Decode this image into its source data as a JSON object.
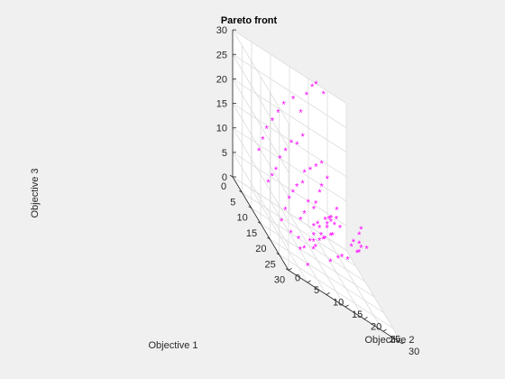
{
  "chart_data": {
    "type": "scatter",
    "title": "Pareto front",
    "xlabel": "Objective 1",
    "ylabel": "Objective 2",
    "zlabel": "Objective 3",
    "xlim": [
      0,
      30
    ],
    "ylim": [
      0,
      30
    ],
    "zlim": [
      0,
      30
    ],
    "xticks": [
      "0",
      "5",
      "10",
      "15",
      "20",
      "25",
      "30"
    ],
    "yticks": [
      "0",
      "5",
      "10",
      "15",
      "20",
      "25",
      "30"
    ],
    "zticks": [
      "0",
      "5",
      "10",
      "15",
      "20",
      "25",
      "30"
    ],
    "grid": true,
    "marker": "*",
    "marker_color": "#ff00ff",
    "series": [
      {
        "points": [
          [
            26,
            7,
            2
          ],
          [
            24,
            14,
            5
          ],
          [
            22,
            17,
            6
          ],
          [
            20,
            19,
            6
          ],
          [
            17,
            22,
            5
          ],
          [
            21,
            18,
            12
          ],
          [
            19,
            22,
            9
          ],
          [
            18,
            24,
            8
          ],
          [
            17,
            25,
            8
          ],
          [
            16,
            24,
            9
          ],
          [
            15,
            26,
            9
          ],
          [
            14,
            27,
            8
          ],
          [
            13,
            27,
            10
          ],
          [
            15,
            28,
            9
          ],
          [
            12,
            28,
            11
          ],
          [
            23,
            10,
            5
          ],
          [
            21,
            13,
            8
          ],
          [
            19,
            15,
            7
          ],
          [
            18,
            17,
            8
          ],
          [
            17,
            18,
            8
          ],
          [
            16,
            19,
            10
          ],
          [
            15,
            20,
            11
          ],
          [
            19,
            12,
            5
          ],
          [
            16,
            14,
            3
          ],
          [
            14,
            16,
            4
          ],
          [
            12,
            18,
            4
          ],
          [
            11,
            17,
            6
          ],
          [
            10,
            20,
            6
          ],
          [
            9,
            20,
            7
          ],
          [
            8,
            22,
            7
          ],
          [
            20,
            8,
            2
          ],
          [
            18,
            10,
            2
          ],
          [
            15,
            13,
            3
          ],
          [
            13,
            15,
            4
          ],
          [
            11,
            16,
            5
          ],
          [
            10,
            18,
            5
          ],
          [
            8,
            21,
            6
          ],
          [
            7,
            22,
            7
          ],
          [
            6,
            23,
            7
          ],
          [
            5,
            25,
            9
          ],
          [
            17,
            7,
            3
          ],
          [
            15,
            10,
            2
          ],
          [
            12,
            12,
            5
          ],
          [
            10,
            14,
            6
          ],
          [
            8,
            16,
            8
          ],
          [
            7,
            18,
            7
          ],
          [
            6,
            19,
            8
          ],
          [
            4,
            21,
            10
          ],
          [
            3,
            22,
            11
          ],
          [
            2,
            24,
            13
          ],
          [
            14,
            6,
            3
          ],
          [
            12,
            8,
            5
          ],
          [
            10,
            10,
            7
          ],
          [
            8,
            12,
            8
          ],
          [
            6,
            14,
            9
          ],
          [
            5,
            16,
            10
          ],
          [
            4,
            17,
            12
          ],
          [
            3,
            19,
            13
          ],
          [
            2,
            21,
            14
          ],
          [
            1,
            23,
            15
          ],
          [
            11,
            4,
            8
          ],
          [
            9,
            6,
            9
          ],
          [
            7,
            8,
            10
          ],
          [
            5,
            10,
            12
          ],
          [
            4,
            12,
            14
          ],
          [
            3,
            14,
            16
          ],
          [
            2,
            16,
            16
          ],
          [
            1,
            18,
            18
          ],
          [
            8,
            3,
            12
          ],
          [
            6,
            5,
            14
          ],
          [
            4,
            7,
            16
          ],
          [
            3,
            9,
            18
          ],
          [
            2,
            11,
            20
          ],
          [
            1,
            13,
            22
          ],
          [
            0,
            16,
            24
          ],
          [
            0,
            21,
            29
          ],
          [
            1,
            19,
            27
          ],
          [
            0,
            22,
            30
          ],
          [
            0,
            24,
            29
          ],
          [
            2,
            17,
            23
          ]
        ]
      }
    ]
  }
}
